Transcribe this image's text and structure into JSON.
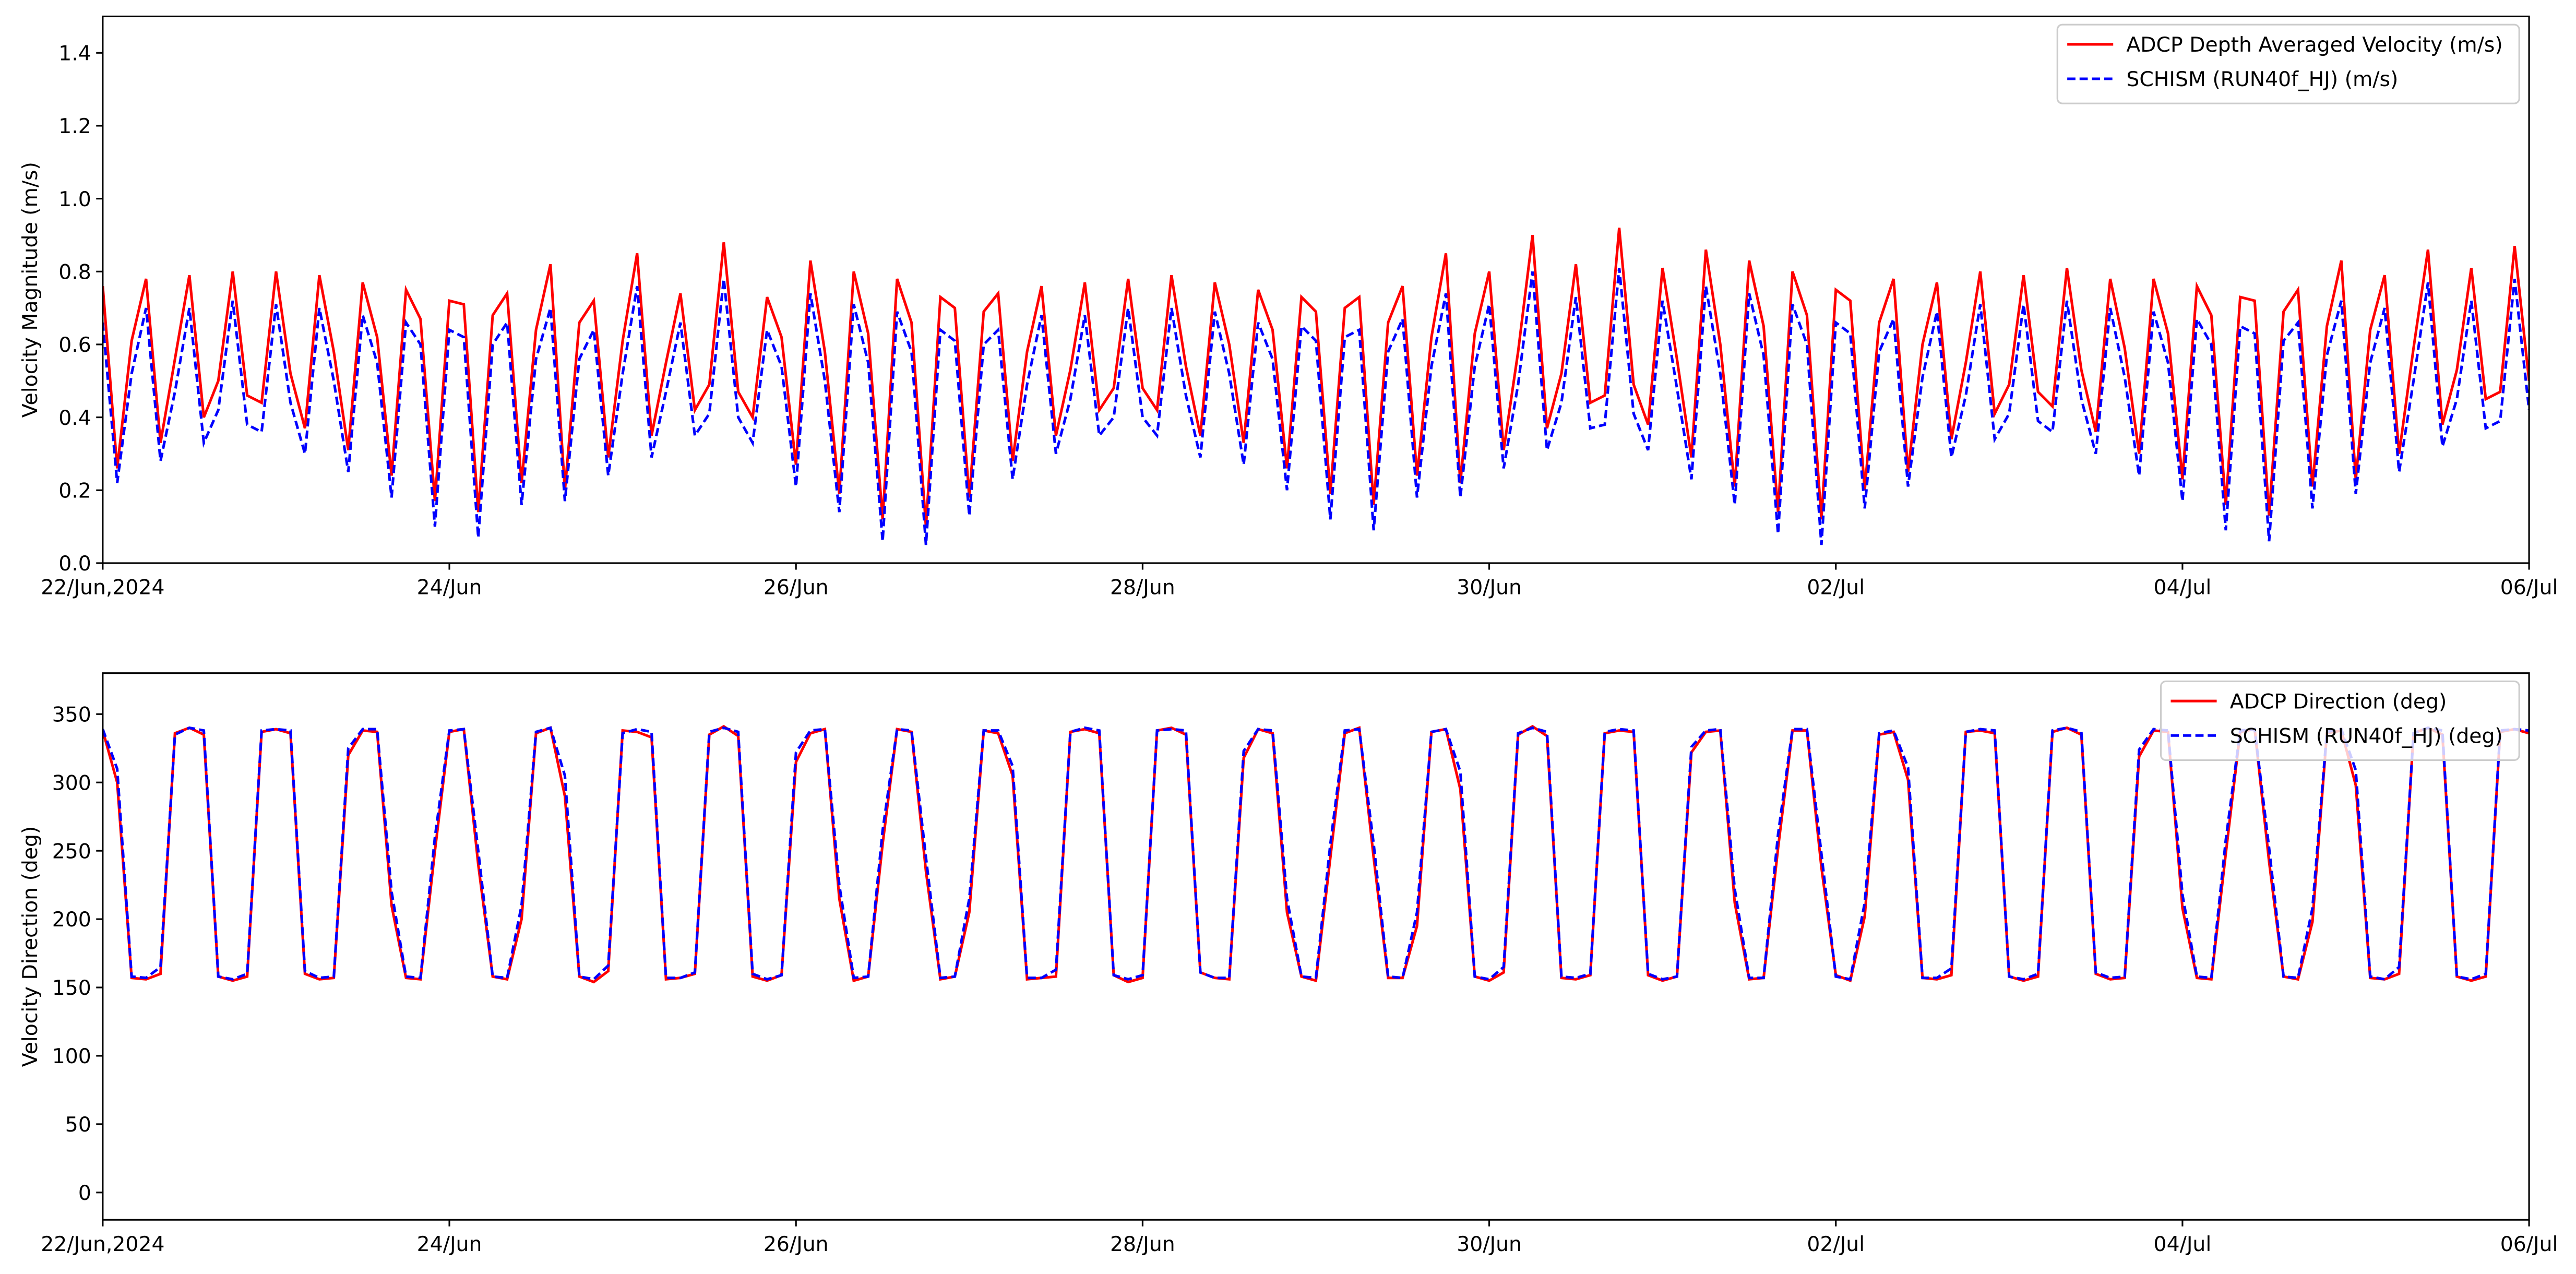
{
  "chart_data": [
    {
      "type": "line",
      "ylabel": "Velocity Magnitude (m/s)",
      "legend": "upper right",
      "xlim": [
        0,
        336
      ],
      "ylim": [
        0,
        1.5
      ],
      "xticks": [
        {
          "value": 0,
          "label": "22/Jun,2024"
        },
        {
          "value": 48,
          "label": "24/Jun"
        },
        {
          "value": 96,
          "label": "26/Jun"
        },
        {
          "value": 144,
          "label": "28/Jun"
        },
        {
          "value": 192,
          "label": "30/Jun"
        },
        {
          "value": 240,
          "label": "02/Jul"
        },
        {
          "value": 288,
          "label": "04/Jul"
        },
        {
          "value": 336,
          "label": "06/Jul"
        }
      ],
      "yticks": [
        {
          "value": 0,
          "label": "0.0"
        },
        0.2,
        0.4,
        0.6,
        0.8,
        {
          "value": 1,
          "label": "1.0"
        },
        1.2,
        1.4
      ],
      "x": [
        0,
        2,
        4,
        6,
        8,
        10,
        12,
        14,
        16,
        18,
        20,
        22,
        24,
        26,
        28,
        30,
        32,
        34,
        36,
        38,
        40,
        42,
        44,
        46,
        48,
        50,
        52,
        54,
        56,
        58,
        60,
        62,
        64,
        66,
        68,
        70,
        72,
        74,
        76,
        78,
        80,
        82,
        84,
        86,
        88,
        90,
        92,
        94,
        96,
        98,
        100,
        102,
        104,
        106,
        108,
        110,
        112,
        114,
        116,
        118,
        120,
        122,
        124,
        126,
        128,
        130,
        132,
        134,
        136,
        138,
        140,
        142,
        144,
        146,
        148,
        150,
        152,
        154,
        156,
        158,
        160,
        162,
        164,
        166,
        168,
        170,
        172,
        174,
        176,
        178,
        180,
        182,
        184,
        186,
        188,
        190,
        192,
        194,
        196,
        198,
        200,
        202,
        204,
        206,
        208,
        210,
        212,
        214,
        216,
        218,
        220,
        222,
        224,
        226,
        228,
        230,
        232,
        234,
        236,
        238,
        240,
        242,
        244,
        246,
        248,
        250,
        252,
        254,
        256,
        258,
        260,
        262,
        264,
        266,
        268,
        270,
        272,
        274,
        276,
        278,
        280,
        282,
        284,
        286,
        288,
        290,
        292,
        294,
        296,
        298,
        300,
        302,
        304,
        306,
        308,
        310,
        312,
        314,
        316,
        318,
        320,
        322,
        324,
        326,
        328,
        330,
        332,
        334,
        336
      ],
      "series": [
        {
          "name": "ADCP Depth Averaged Velocity (m/s)",
          "color": "#ff0000",
          "linestyle": "solid",
          "values": [
            0.76,
            0.26,
            0.61,
            0.78,
            0.33,
            0.56,
            0.79,
            0.4,
            0.5,
            0.8,
            0.46,
            0.44,
            0.8,
            0.52,
            0.37,
            0.79,
            0.58,
            0.31,
            0.77,
            0.62,
            0.24,
            0.75,
            0.67,
            0.17,
            0.72,
            0.71,
            0.14,
            0.68,
            0.74,
            0.22,
            0.64,
            0.82,
            0.2,
            0.66,
            0.72,
            0.29,
            0.61,
            0.85,
            0.35,
            0.55,
            0.74,
            0.42,
            0.49,
            0.88,
            0.47,
            0.4,
            0.73,
            0.62,
            0.27,
            0.83,
            0.58,
            0.19,
            0.8,
            0.63,
            0.12,
            0.78,
            0.66,
            0.1,
            0.73,
            0.7,
            0.18,
            0.69,
            0.74,
            0.28,
            0.58,
            0.76,
            0.35,
            0.53,
            0.77,
            0.42,
            0.48,
            0.78,
            0.48,
            0.42,
            0.79,
            0.54,
            0.35,
            0.77,
            0.6,
            0.33,
            0.75,
            0.64,
            0.26,
            0.73,
            0.69,
            0.19,
            0.7,
            0.73,
            0.16,
            0.66,
            0.76,
            0.24,
            0.62,
            0.85,
            0.22,
            0.63,
            0.8,
            0.31,
            0.58,
            0.9,
            0.37,
            0.52,
            0.82,
            0.44,
            0.46,
            0.92,
            0.49,
            0.38,
            0.81,
            0.56,
            0.29,
            0.86,
            0.6,
            0.21,
            0.83,
            0.65,
            0.14,
            0.8,
            0.68,
            0.12,
            0.75,
            0.72,
            0.2,
            0.66,
            0.78,
            0.25,
            0.6,
            0.77,
            0.34,
            0.55,
            0.8,
            0.41,
            0.49,
            0.79,
            0.47,
            0.43,
            0.81,
            0.53,
            0.36,
            0.78,
            0.59,
            0.3,
            0.78,
            0.63,
            0.23,
            0.76,
            0.68,
            0.16,
            0.73,
            0.72,
            0.13,
            0.69,
            0.75,
            0.21,
            0.65,
            0.83,
            0.23,
            0.64,
            0.79,
            0.3,
            0.59,
            0.86,
            0.38,
            0.53,
            0.81,
            0.45,
            0.47,
            0.87,
            0.5
          ]
        },
        {
          "name": "SCHISM (RUN40f_HJ) (m/s)",
          "color": "#0000ff",
          "linestyle": "dashed",
          "values": [
            0.66,
            0.22,
            0.52,
            0.7,
            0.28,
            0.47,
            0.7,
            0.33,
            0.42,
            0.72,
            0.38,
            0.36,
            0.71,
            0.44,
            0.3,
            0.7,
            0.5,
            0.25,
            0.68,
            0.55,
            0.18,
            0.66,
            0.6,
            0.1,
            0.64,
            0.62,
            0.07,
            0.6,
            0.66,
            0.16,
            0.56,
            0.7,
            0.17,
            0.56,
            0.64,
            0.24,
            0.52,
            0.76,
            0.29,
            0.47,
            0.66,
            0.35,
            0.41,
            0.78,
            0.4,
            0.33,
            0.64,
            0.54,
            0.21,
            0.74,
            0.5,
            0.14,
            0.71,
            0.55,
            0.06,
            0.69,
            0.58,
            0.05,
            0.64,
            0.61,
            0.13,
            0.6,
            0.64,
            0.23,
            0.49,
            0.68,
            0.3,
            0.45,
            0.68,
            0.35,
            0.4,
            0.7,
            0.4,
            0.35,
            0.7,
            0.46,
            0.29,
            0.69,
            0.52,
            0.27,
            0.66,
            0.56,
            0.2,
            0.65,
            0.61,
            0.12,
            0.62,
            0.64,
            0.09,
            0.58,
            0.67,
            0.18,
            0.54,
            0.74,
            0.18,
            0.54,
            0.71,
            0.26,
            0.49,
            0.8,
            0.31,
            0.44,
            0.73,
            0.37,
            0.38,
            0.81,
            0.41,
            0.31,
            0.72,
            0.48,
            0.23,
            0.76,
            0.52,
            0.16,
            0.74,
            0.57,
            0.08,
            0.71,
            0.6,
            0.05,
            0.66,
            0.63,
            0.15,
            0.58,
            0.67,
            0.21,
            0.51,
            0.69,
            0.29,
            0.46,
            0.71,
            0.34,
            0.41,
            0.71,
            0.39,
            0.36,
            0.72,
            0.45,
            0.3,
            0.7,
            0.51,
            0.24,
            0.69,
            0.55,
            0.17,
            0.67,
            0.6,
            0.09,
            0.65,
            0.63,
            0.06,
            0.61,
            0.66,
            0.15,
            0.57,
            0.72,
            0.19,
            0.55,
            0.7,
            0.25,
            0.5,
            0.77,
            0.32,
            0.45,
            0.72,
            0.37,
            0.39,
            0.78,
            0.42
          ]
        }
      ]
    },
    {
      "type": "line",
      "ylabel": "Velocity Direction (deg)",
      "legend": "upper right",
      "xlim": [
        0,
        336
      ],
      "ylim": [
        -20,
        380
      ],
      "xticks": [
        {
          "value": 0,
          "label": "22/Jun,2024"
        },
        {
          "value": 48,
          "label": "24/Jun"
        },
        {
          "value": 96,
          "label": "26/Jun"
        },
        {
          "value": 144,
          "label": "28/Jun"
        },
        {
          "value": 192,
          "label": "30/Jun"
        },
        {
          "value": 240,
          "label": "02/Jul"
        },
        {
          "value": 288,
          "label": "04/Jul"
        },
        {
          "value": 336,
          "label": "06/Jul"
        }
      ],
      "yticks": [
        0,
        50,
        100,
        150,
        200,
        250,
        300,
        350
      ],
      "x": [
        0,
        2,
        4,
        6,
        8,
        10,
        12,
        14,
        16,
        18,
        20,
        22,
        24,
        26,
        28,
        30,
        32,
        34,
        36,
        38,
        40,
        42,
        44,
        46,
        48,
        50,
        52,
        54,
        56,
        58,
        60,
        62,
        64,
        66,
        68,
        70,
        72,
        74,
        76,
        78,
        80,
        82,
        84,
        86,
        88,
        90,
        92,
        94,
        96,
        98,
        100,
        102,
        104,
        106,
        108,
        110,
        112,
        114,
        116,
        118,
        120,
        122,
        124,
        126,
        128,
        130,
        132,
        134,
        136,
        138,
        140,
        142,
        144,
        146,
        148,
        150,
        152,
        154,
        156,
        158,
        160,
        162,
        164,
        166,
        168,
        170,
        172,
        174,
        176,
        178,
        180,
        182,
        184,
        186,
        188,
        190,
        192,
        194,
        196,
        198,
        200,
        202,
        204,
        206,
        208,
        210,
        212,
        214,
        216,
        218,
        220,
        222,
        224,
        226,
        228,
        230,
        232,
        234,
        236,
        238,
        240,
        242,
        244,
        246,
        248,
        250,
        252,
        254,
        256,
        258,
        260,
        262,
        264,
        266,
        268,
        270,
        272,
        274,
        276,
        278,
        280,
        282,
        284,
        286,
        288,
        290,
        292,
        294,
        296,
        298,
        300,
        302,
        304,
        306,
        308,
        310,
        312,
        314,
        316,
        318,
        320,
        322,
        324,
        326,
        328,
        330,
        332,
        334,
        336
      ],
      "series": [
        {
          "name": "ADCP Direction (deg)",
          "color": "#ff0000",
          "linestyle": "solid",
          "values": [
            338,
            300,
            157,
            156,
            160,
            336,
            340,
            335,
            158,
            155,
            158,
            337,
            339,
            336,
            160,
            156,
            157,
            320,
            338,
            337,
            210,
            157,
            156,
            250,
            337,
            339,
            240,
            158,
            156,
            200,
            336,
            340,
            290,
            158,
            154,
            162,
            338,
            337,
            333,
            156,
            157,
            160,
            335,
            341,
            334,
            158,
            155,
            159,
            315,
            336,
            339,
            215,
            155,
            158,
            255,
            339,
            337,
            235,
            156,
            158,
            205,
            338,
            336,
            305,
            156,
            157,
            158,
            337,
            339,
            336,
            159,
            154,
            157,
            338,
            340,
            335,
            161,
            157,
            156,
            318,
            339,
            336,
            205,
            158,
            155,
            245,
            336,
            340,
            245,
            157,
            157,
            195,
            337,
            339,
            295,
            158,
            155,
            161,
            335,
            341,
            334,
            157,
            156,
            159,
            336,
            338,
            337,
            159,
            155,
            158,
            322,
            337,
            338,
            212,
            156,
            157,
            252,
            338,
            338,
            238,
            159,
            155,
            202,
            335,
            337,
            302,
            157,
            156,
            159,
            337,
            338,
            336,
            158,
            155,
            158,
            337,
            340,
            335,
            160,
            156,
            157,
            319,
            338,
            337,
            208,
            157,
            156,
            248,
            337,
            339,
            242,
            158,
            156,
            198,
            336,
            338,
            298,
            157,
            156,
            160,
            336,
            340,
            335,
            158,
            155,
            158,
            337,
            339,
            336
          ]
        },
        {
          "name": "SCHISM (RUN40f_HJ) (deg)",
          "color": "#0000ff",
          "linestyle": "dashed",
          "values": [
            339,
            310,
            158,
            157,
            165,
            335,
            340,
            338,
            158,
            156,
            160,
            338,
            339,
            338,
            162,
            157,
            158,
            325,
            339,
            339,
            220,
            158,
            157,
            260,
            338,
            339,
            250,
            158,
            157,
            210,
            337,
            340,
            305,
            158,
            156,
            166,
            336,
            339,
            337,
            157,
            157,
            161,
            337,
            340,
            337,
            160,
            156,
            159,
            322,
            338,
            339,
            225,
            157,
            158,
            265,
            339,
            338,
            245,
            157,
            158,
            215,
            338,
            338,
            312,
            157,
            157,
            163,
            337,
            340,
            338,
            159,
            156,
            159,
            338,
            339,
            338,
            161,
            157,
            157,
            323,
            339,
            338,
            215,
            158,
            157,
            255,
            338,
            339,
            255,
            158,
            157,
            205,
            337,
            339,
            308,
            158,
            156,
            165,
            336,
            340,
            337,
            158,
            157,
            160,
            337,
            339,
            338,
            160,
            156,
            158,
            326,
            338,
            339,
            222,
            157,
            157,
            262,
            339,
            339,
            248,
            158,
            156,
            212,
            336,
            338,
            311,
            157,
            157,
            164,
            337,
            339,
            338,
            158,
            156,
            160,
            338,
            340,
            337,
            161,
            157,
            158,
            324,
            339,
            338,
            218,
            158,
            157,
            258,
            338,
            339,
            252,
            158,
            157,
            208,
            337,
            339,
            309,
            158,
            156,
            165,
            336,
            340,
            338,
            158,
            156,
            160,
            338,
            339,
            338
          ]
        }
      ]
    }
  ]
}
